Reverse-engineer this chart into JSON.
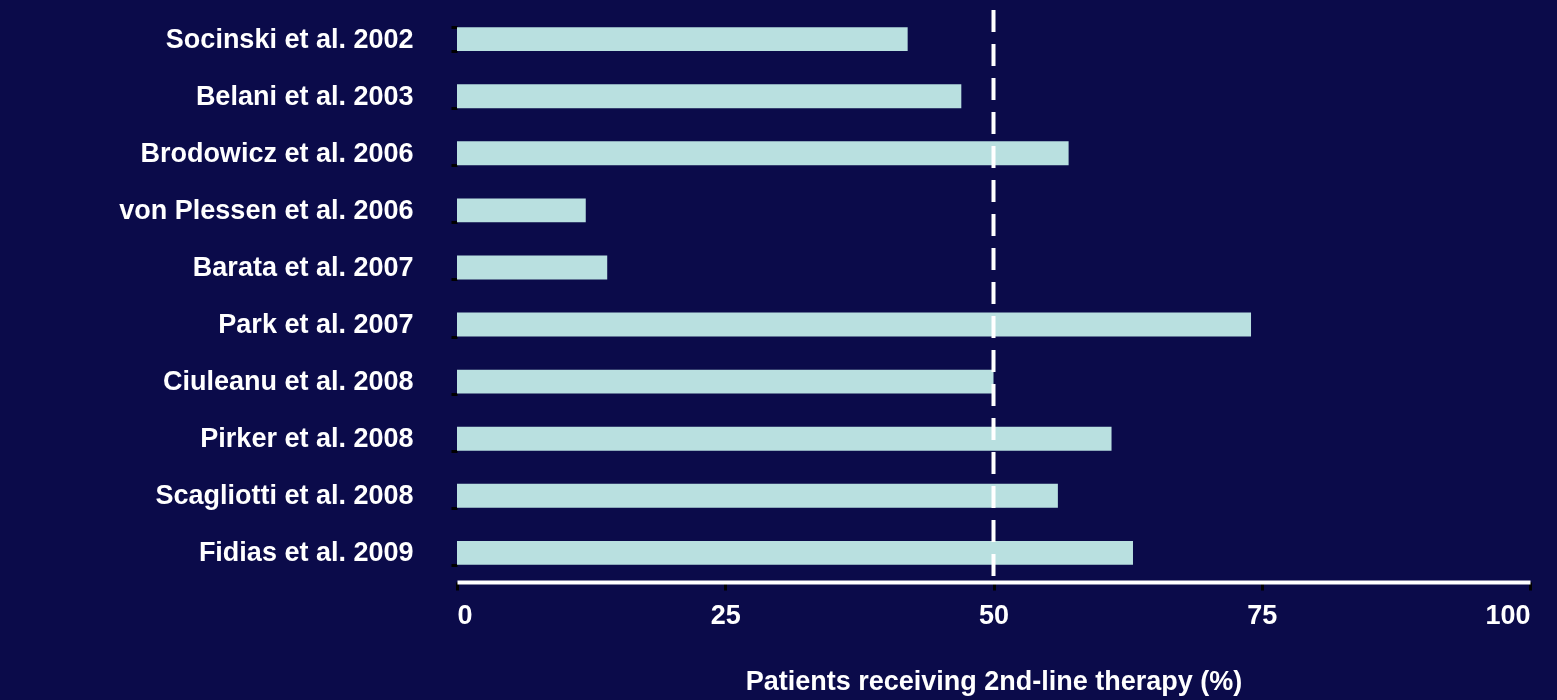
{
  "chart_data": {
    "type": "bar",
    "orientation": "horizontal",
    "xlabel": "Patients receiving 2nd-line therapy (%)",
    "categories": [
      "Socinski et al. 2002",
      "Belani et al. 2003",
      "Brodowicz et al. 2006",
      "von Plessen et al. 2006",
      "Barata et al. 2007",
      "Park et al. 2007",
      "Ciuleanu et al. 2008",
      "Pirker et al. 2008",
      "Scagliotti et al. 2008",
      "Fidias et al. 2009"
    ],
    "values": [
      42,
      47,
      57,
      12,
      14,
      74,
      50,
      61,
      56,
      63
    ],
    "color": "#b9e0e0",
    "xlim": [
      0,
      100
    ],
    "xticks": [
      0,
      25,
      50,
      75,
      100
    ],
    "ref_lines": [
      {
        "axis": "x",
        "value": 50,
        "color": "#ffffff",
        "line_style": "dashed"
      }
    ],
    "grid": false
  }
}
